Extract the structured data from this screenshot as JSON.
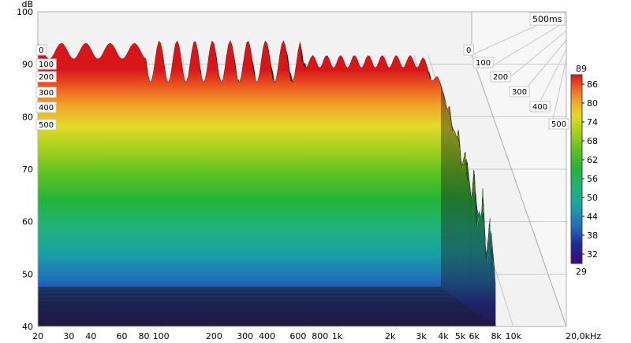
{
  "chart_data": {
    "type": "waterfall",
    "title": "",
    "ylabel": "dB",
    "xlabel_unit": "kHz",
    "time_label": "500ms",
    "y_ticks": [
      "100",
      "90",
      "80",
      "70",
      "60",
      "50",
      "40"
    ],
    "ylim": [
      40,
      100
    ],
    "x_ticks": [
      "20",
      "30",
      "40",
      "60",
      "80",
      "100",
      "200",
      "300",
      "400",
      "600",
      "800",
      "1k",
      "2k",
      "3k",
      "4k",
      "5k",
      "6k",
      "8k",
      "10k",
      "20,0kHz"
    ],
    "x_values": [
      20,
      30,
      40,
      60,
      80,
      100,
      200,
      300,
      400,
      600,
      800,
      1000,
      2000,
      3000,
      4000,
      5000,
      6000,
      8000,
      10000,
      20000
    ],
    "xlim": [
      20,
      20000
    ],
    "time_ticks_right": [
      "0",
      "100",
      "200",
      "300",
      "400",
      "500"
    ],
    "time_ticks_left": [
      "0",
      "100",
      "200",
      "300",
      "400",
      "500"
    ],
    "time_values": [
      0,
      100,
      200,
      300,
      400,
      500
    ],
    "colorbar": {
      "max_label": "89",
      "min_label": "29",
      "ticks": [
        "86",
        "80",
        "74",
        "68",
        "62",
        "56",
        "50",
        "44",
        "38",
        "32"
      ],
      "tick_values": [
        86,
        80,
        74,
        68,
        62,
        56,
        50,
        44,
        38,
        32
      ],
      "range": [
        29,
        89
      ],
      "stops": [
        {
          "v": 29,
          "color": "#3a0a78"
        },
        {
          "v": 35,
          "color": "#1a2a9a"
        },
        {
          "v": 41,
          "color": "#1f6fb8"
        },
        {
          "v": 47,
          "color": "#19a3a3"
        },
        {
          "v": 53,
          "color": "#21b27a"
        },
        {
          "v": 59,
          "color": "#22b43a"
        },
        {
          "v": 65,
          "color": "#5cc21f"
        },
        {
          "v": 71,
          "color": "#a8d11e"
        },
        {
          "v": 76,
          "color": "#e4d92a"
        },
        {
          "v": 81,
          "color": "#f2a028"
        },
        {
          "v": 85,
          "color": "#ee5a22"
        },
        {
          "v": 89,
          "color": "#d8161a"
        }
      ]
    },
    "grid": true,
    "colors": {
      "background": "#ffffff",
      "wall": "#f2f2f2",
      "grid": "#c8c8c8",
      "ridge_line": "#1a1a1a"
    }
  }
}
